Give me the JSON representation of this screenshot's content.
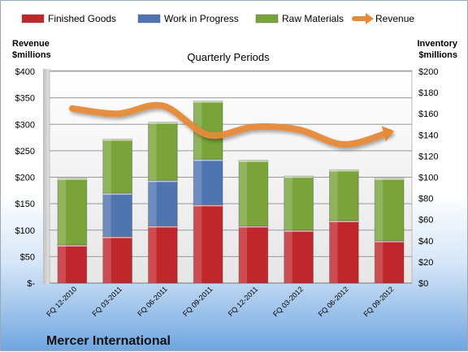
{
  "chart_data": {
    "type": "bar",
    "title": "Quarterly Periods",
    "company": "Mercer International",
    "left_axis": {
      "label_line1": "Revenue",
      "label_line2": "$millions",
      "ylim": [
        0,
        400
      ],
      "ticks": [
        0,
        50,
        100,
        150,
        200,
        250,
        300,
        350,
        400
      ],
      "tick_labels": [
        "$-",
        "$50",
        "$100",
        "$150",
        "$200",
        "$250",
        "$300",
        "$350",
        "$400"
      ]
    },
    "right_axis": {
      "label_line1": "Inventory",
      "label_line2": "$millions",
      "ylim": [
        0,
        200
      ],
      "ticks": [
        0,
        20,
        40,
        60,
        80,
        100,
        120,
        140,
        160,
        180,
        200
      ],
      "tick_labels": [
        "$0",
        "$20",
        "$40",
        "$60",
        "$80",
        "$100",
        "$120",
        "$140",
        "$160",
        "$180",
        "$200"
      ]
    },
    "categories": [
      "FQ 12-2010",
      "FQ 03-2011",
      "FQ 06-2011",
      "FQ 09-2011",
      "FQ 12-2011",
      "FQ 03-2012",
      "FQ 06-2012",
      "FQ 09-2012"
    ],
    "series": [
      {
        "name": "Finished Goods",
        "axis": "right",
        "color": "#c0272d",
        "values": [
          36,
          44,
          54,
          74,
          54,
          50,
          59,
          40
        ]
      },
      {
        "name": "Work in Progress",
        "axis": "right",
        "color": "#4f74b0",
        "values": [
          0,
          41,
          43,
          43,
          0,
          0,
          0,
          0
        ]
      },
      {
        "name": "Raw Materials",
        "axis": "right",
        "color": "#7aa33a",
        "values": [
          63,
          51,
          55,
          55,
          62,
          51,
          48,
          59
        ]
      },
      {
        "name": "Revenue",
        "axis": "left",
        "type": "line",
        "color": "#e68a3a",
        "values": [
          330,
          320,
          335,
          280,
          295,
          290,
          262,
          285
        ]
      }
    ],
    "grid": true,
    "legend_position": "top"
  }
}
